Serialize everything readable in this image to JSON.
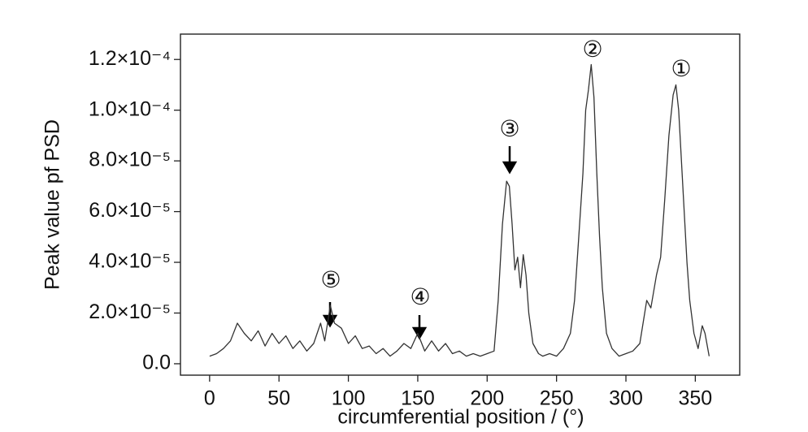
{
  "chart_data": {
    "type": "line",
    "xlabel": "circumferential position / (°)",
    "ylabel": "Peak value pf PSD",
    "color": "#333333",
    "x": [
      0,
      5,
      10,
      15,
      20,
      25,
      30,
      35,
      40,
      45,
      50,
      55,
      60,
      65,
      70,
      75,
      80,
      83,
      87,
      90,
      95,
      100,
      105,
      110,
      115,
      120,
      125,
      130,
      135,
      140,
      145,
      150,
      155,
      160,
      165,
      170,
      175,
      180,
      185,
      190,
      195,
      200,
      205,
      208,
      211,
      214,
      216,
      218,
      220,
      222,
      224,
      226,
      228,
      230,
      233,
      237,
      240,
      245,
      250,
      255,
      260,
      263,
      266,
      269,
      271,
      273,
      275,
      277,
      279,
      281,
      283,
      286,
      290,
      295,
      300,
      305,
      310,
      315,
      318,
      322,
      325,
      328,
      331,
      334,
      336,
      338,
      340,
      342,
      344,
      346,
      349,
      352,
      355,
      357,
      360
    ],
    "values": [
      3e-06,
      4e-06,
      6e-06,
      9e-06,
      1.6e-05,
      1.2e-05,
      9e-06,
      1.3e-05,
      7e-06,
      1.2e-05,
      8e-06,
      1.1e-05,
      6e-06,
      9e-06,
      5e-06,
      8e-06,
      1.6e-05,
      9e-06,
      2.3e-05,
      1.6e-05,
      1.4e-05,
      8e-06,
      1.1e-05,
      6e-06,
      7e-06,
      4e-06,
      6e-06,
      3e-06,
      5e-06,
      8e-06,
      6e-06,
      1.2e-05,
      5e-06,
      9e-06,
      5e-06,
      8e-06,
      4e-06,
      5e-06,
      3e-06,
      4e-06,
      3e-06,
      4e-06,
      5e-06,
      2.5e-05,
      5.5e-05,
      7.2e-05,
      7e-05,
      5.5e-05,
      3.7e-05,
      4.2e-05,
      3e-05,
      4.3e-05,
      3.5e-05,
      2e-05,
      8e-06,
      4e-06,
      3e-06,
      4e-06,
      3e-06,
      6e-06,
      1.2e-05,
      2.5e-05,
      5e-05,
      7.5e-05,
      0.0001,
      0.000108,
      0.000118,
      0.000105,
      7.5e-05,
      5e-05,
      3e-05,
      1.2e-05,
      6e-06,
      3e-06,
      4e-06,
      5e-06,
      8e-06,
      2.5e-05,
      2.2e-05,
      3.5e-05,
      4.2e-05,
      6.5e-05,
      9e-05,
      0.000106,
      0.00011,
      0.0001,
      8e-05,
      6e-05,
      4e-05,
      2.5e-05,
      1.2e-05,
      6e-06,
      1.5e-05,
      1.2e-05,
      3e-06
    ],
    "xlim": [
      -21,
      382
    ],
    "ylim": [
      -4.5e-06,
      0.00013
    ],
    "xticks": [
      0,
      50,
      100,
      150,
      200,
      250,
      300,
      350
    ],
    "yticks": [
      {
        "value": 0,
        "label": "0.0"
      },
      {
        "value": 2e-05,
        "label": "2.0×10⁻⁵"
      },
      {
        "value": 4e-05,
        "label": "4.0×10⁻⁵"
      },
      {
        "value": 6e-05,
        "label": "6.0×10⁻⁵"
      },
      {
        "value": 8e-05,
        "label": "8.0×10⁻⁵"
      },
      {
        "value": 0.0001,
        "label": "1.0×10⁻⁴"
      },
      {
        "value": 0.00012,
        "label": "1.2×10⁻⁴"
      }
    ],
    "annotations": [
      "①",
      "②",
      "③",
      "④",
      "⑤"
    ]
  }
}
